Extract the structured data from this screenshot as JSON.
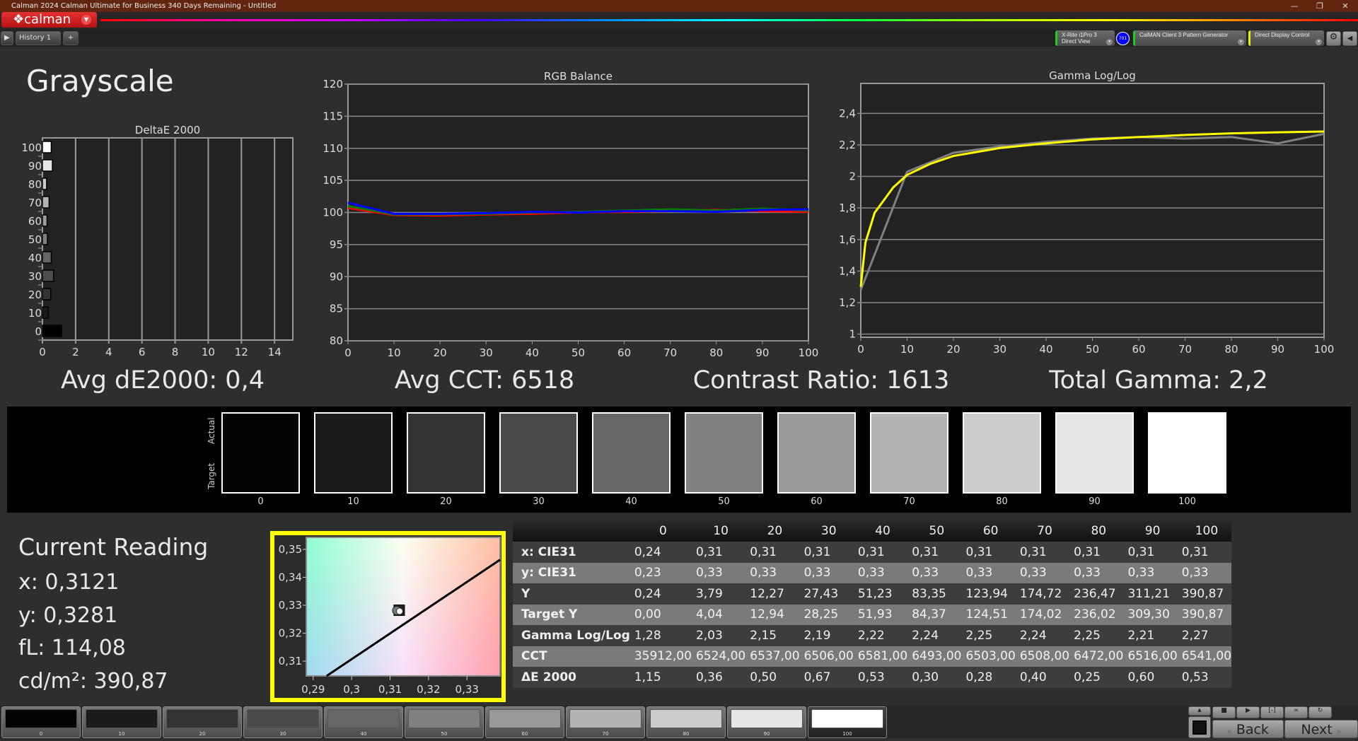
{
  "window": {
    "title": "Calman 2024 Calman Ultimate for Business 340 Days Remaining  - Untitled",
    "logo": "calman",
    "controls": [
      "minimize-icon",
      "restore-icon",
      "close-icon"
    ]
  },
  "tabs": {
    "history": "History 1",
    "add": "+"
  },
  "devices": {
    "meter": {
      "line1": "X-Rite i1Pro 3",
      "line2": "Direct View",
      "badge": "701"
    },
    "pattern": "CalMAN Client 3 Pattern Generator",
    "display": "Direct Display Control"
  },
  "page": {
    "title": "Grayscale"
  },
  "stats": {
    "avg_de": "Avg dE2000: 0,4",
    "avg_cct": "Avg CCT: 6518",
    "contrast": "Contrast Ratio: 1613",
    "gamma": "Total Gamma: 2,2"
  },
  "swatches": {
    "actual_label": "Actual",
    "target_label": "Target",
    "levels": [
      "0",
      "10",
      "20",
      "30",
      "40",
      "50",
      "60",
      "70",
      "80",
      "90",
      "100"
    ],
    "colors": [
      "#030305",
      "#1b1b1b",
      "#333333",
      "#4a4a4a",
      "#666666",
      "#808080",
      "#999999",
      "#b3b3b3",
      "#cccccc",
      "#e5e5e5",
      "#ffffff"
    ]
  },
  "current": {
    "title": "Current Reading",
    "x": "x: 0,3121",
    "y": "y: 0,3281",
    "fl": "fL: 114,08",
    "cdm2": "cd/m²: 390,87"
  },
  "table": {
    "headers": [
      "",
      "0",
      "10",
      "20",
      "30",
      "40",
      "50",
      "60",
      "70",
      "80",
      "90",
      "100"
    ],
    "rows": [
      {
        "label": "x: CIE31",
        "values": [
          "0,24",
          "0,31",
          "0,31",
          "0,31",
          "0,31",
          "0,31",
          "0,31",
          "0,31",
          "0,31",
          "0,31",
          "0,31"
        ]
      },
      {
        "label": "y: CIE31",
        "values": [
          "0,23",
          "0,33",
          "0,33",
          "0,33",
          "0,33",
          "0,33",
          "0,33",
          "0,33",
          "0,33",
          "0,33",
          "0,33"
        ]
      },
      {
        "label": "Y",
        "values": [
          "0,24",
          "3,79",
          "12,27",
          "27,43",
          "51,23",
          "83,35",
          "123,94",
          "174,72",
          "236,47",
          "311,21",
          "390,87"
        ]
      },
      {
        "label": "Target Y",
        "values": [
          "0,00",
          "4,04",
          "12,94",
          "28,25",
          "51,93",
          "84,37",
          "124,51",
          "174,02",
          "236,02",
          "309,30",
          "390,87"
        ]
      },
      {
        "label": "Gamma Log/Log",
        "values": [
          "1,28",
          "2,03",
          "2,15",
          "2,19",
          "2,22",
          "2,24",
          "2,25",
          "2,24",
          "2,25",
          "2,21",
          "2,27"
        ]
      },
      {
        "label": "CCT",
        "values": [
          "35912,00",
          "6524,00",
          "6537,00",
          "6506,00",
          "6581,00",
          "6493,00",
          "6503,00",
          "6508,00",
          "6472,00",
          "6516,00",
          "6541,00"
        ]
      },
      {
        "label": "ΔE 2000",
        "values": [
          "1,15",
          "0,36",
          "0,50",
          "0,67",
          "0,53",
          "0,30",
          "0,28",
          "0,40",
          "0,25",
          "0,60",
          "0,53"
        ]
      }
    ]
  },
  "controls": {
    "back": "Back",
    "next": "Next",
    "selected_patch": "100"
  },
  "chart_data": [
    {
      "type": "bar",
      "orientation": "horizontal",
      "title": "DeltaE 2000",
      "categories": [
        "0",
        "10",
        "20",
        "30",
        "40",
        "50",
        "60",
        "70",
        "80",
        "90",
        "100"
      ],
      "values": [
        1.15,
        0.36,
        0.5,
        0.67,
        0.53,
        0.3,
        0.28,
        0.4,
        0.25,
        0.6,
        0.53
      ],
      "xlim": [
        0,
        15.1
      ],
      "xticks": [
        0,
        2,
        4,
        6,
        8,
        10,
        12,
        14
      ],
      "grid": true
    },
    {
      "type": "line",
      "title": "RGB Balance",
      "x": [
        0,
        10,
        20,
        30,
        40,
        50,
        60,
        70,
        80,
        90,
        100
      ],
      "xlim": [
        0,
        100
      ],
      "ylim": [
        80,
        120
      ],
      "yticks": [
        80,
        85,
        90,
        95,
        100,
        105,
        110,
        115,
        120
      ],
      "xticks": [
        0,
        10,
        20,
        30,
        40,
        50,
        60,
        70,
        80,
        90,
        100
      ],
      "grid": true,
      "series": [
        {
          "color": "#ff0000",
          "values": [
            100.7,
            99.6,
            99.5,
            99.7,
            99.8,
            100.0,
            100.1,
            100.2,
            100.4,
            100.2,
            100.1
          ]
        },
        {
          "color": "#008000",
          "values": [
            101.0,
            99.7,
            99.7,
            99.8,
            100.0,
            100.1,
            100.3,
            100.5,
            100.3,
            100.6,
            100.3
          ]
        },
        {
          "color": "#0000ff",
          "values": [
            101.5,
            99.8,
            99.8,
            99.9,
            100.1,
            100.0,
            100.2,
            100.2,
            100.1,
            100.4,
            100.5
          ]
        }
      ]
    },
    {
      "type": "line",
      "title": "Gamma Log/Log",
      "xlim": [
        0,
        100
      ],
      "ylim": [
        0.98,
        2.59
      ],
      "yticks": [
        1,
        1.2,
        1.4,
        1.6,
        1.8,
        2,
        2.2,
        2.4
      ],
      "ytick_labels": [
        "1",
        "1,2",
        "1,4",
        "1,6",
        "1,8",
        "2",
        "2,2",
        "2,4"
      ],
      "xticks": [
        0,
        10,
        20,
        30,
        40,
        50,
        60,
        70,
        80,
        90,
        100
      ],
      "grid": true,
      "series": [
        {
          "color": "#808080",
          "x": [
            0,
            10,
            20,
            30,
            40,
            50,
            60,
            70,
            80,
            90,
            100
          ],
          "values": [
            1.28,
            2.03,
            2.15,
            2.19,
            2.22,
            2.24,
            2.25,
            2.24,
            2.25,
            2.21,
            2.27
          ]
        },
        {
          "color": "#ffff00",
          "x": [
            0,
            1,
            3,
            5,
            7,
            10,
            15,
            20,
            30,
            40,
            50,
            60,
            70,
            80,
            90,
            100
          ],
          "values": [
            1.3,
            1.58,
            1.77,
            1.85,
            1.93,
            2.01,
            2.08,
            2.13,
            2.18,
            2.21,
            2.235,
            2.25,
            2.263,
            2.273,
            2.28,
            2.285
          ]
        }
      ]
    },
    {
      "type": "scatter",
      "title": "",
      "xlim": [
        0.2882,
        0.3386
      ],
      "ylim": [
        0.3047,
        0.3543
      ],
      "xticks": [
        0.29,
        0.3,
        0.31,
        0.32,
        0.33
      ],
      "xtick_labels": [
        "0,29",
        "0,3",
        "0,31",
        "0,32",
        "0,33"
      ],
      "yticks": [
        0.31,
        0.32,
        0.33,
        0.34,
        0.35
      ],
      "ytick_labels": [
        "0,31",
        "0,32",
        "0,33",
        "0,34",
        "0,35"
      ],
      "point": {
        "x": 0.3121,
        "y": 0.3281
      },
      "locus": {
        "x": [
          0.2935,
          0.3386
        ],
        "y": [
          0.3047,
          0.3463
        ]
      }
    }
  ]
}
